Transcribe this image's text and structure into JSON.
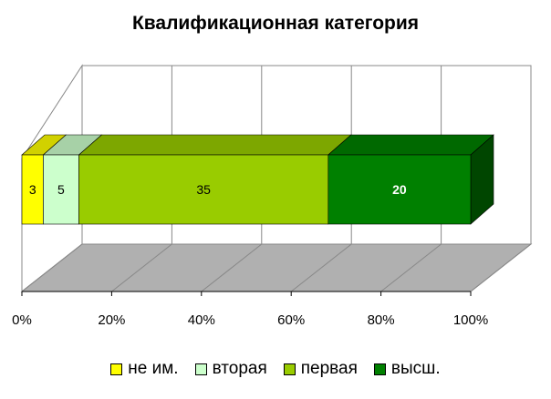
{
  "chart_data": {
    "type": "bar",
    "orientation": "horizontal",
    "stacked": "percent",
    "title": "Квалификационная категория",
    "xlabel": "",
    "ylabel": "",
    "xlim": [
      0,
      100
    ],
    "x_ticks": [
      "0%",
      "20%",
      "40%",
      "60%",
      "80%",
      "100%"
    ],
    "grid": true,
    "legend_position": "bottom",
    "series": [
      {
        "name": "не им.",
        "values": [
          3
        ],
        "color": "#FFFF00",
        "label": "3"
      },
      {
        "name": "вторая",
        "values": [
          5
        ],
        "color": "#CCFFCC",
        "label": "5"
      },
      {
        "name": "первая",
        "values": [
          35
        ],
        "color": "#99CC00",
        "label": "35"
      },
      {
        "name": "высш.",
        "values": [
          20
        ],
        "color": "#008000",
        "label": "20"
      }
    ]
  }
}
